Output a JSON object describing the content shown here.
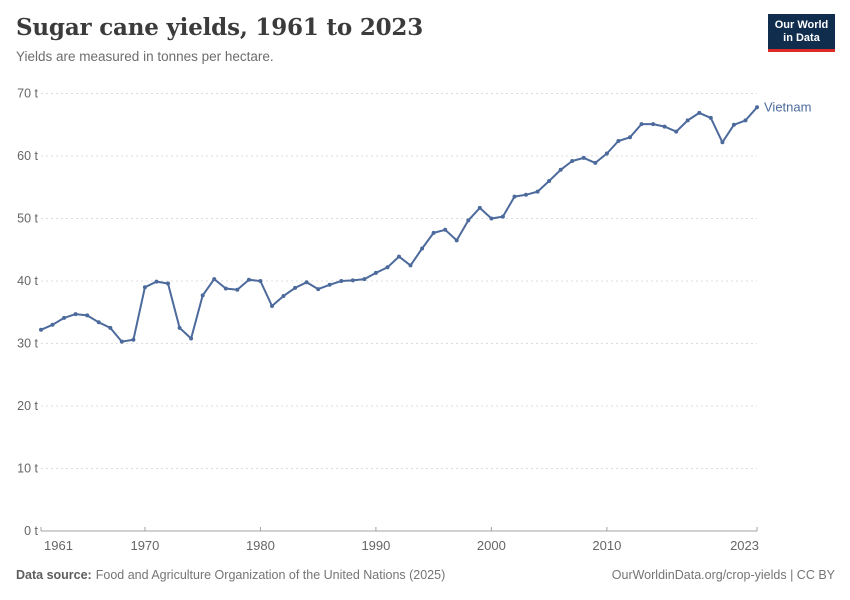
{
  "header": {
    "title": "Sugar cane yields, 1961 to 2023",
    "subtitle": "Yields are measured in tonnes per hectare."
  },
  "logo": {
    "line1": "Our World",
    "line2": "in Data"
  },
  "footer": {
    "source_label": "Data source:",
    "source_text": "Food and Agriculture Organization of the United Nations (2025)",
    "credit": "OurWorldinData.org/crop-yields | CC BY"
  },
  "colors": {
    "line": "#4C6A9C",
    "entity_label": "#4C6A9C",
    "gridline": "#dcdcdc",
    "axis": "#a3a3a3",
    "tick_text": "#666666"
  },
  "chart_data": {
    "type": "line",
    "title": "Sugar cane yields, 1961 to 2023",
    "ylabel": "tonnes per hectare",
    "xlabel": "",
    "xlim": [
      1961,
      2023
    ],
    "ylim": [
      0,
      70
    ],
    "xticks": [
      1961,
      1970,
      1980,
      1990,
      2000,
      2010,
      2023
    ],
    "yticks": [
      0,
      10,
      20,
      30,
      40,
      50,
      60,
      70
    ],
    "ytick_suffix": " t",
    "grid": "horizontal-dashed",
    "legend_position": "end-of-line-label",
    "series": [
      {
        "name": "Vietnam",
        "color": "#4C6A9C",
        "x": [
          1961,
          1962,
          1963,
          1964,
          1965,
          1966,
          1967,
          1968,
          1969,
          1970,
          1971,
          1972,
          1973,
          1974,
          1975,
          1976,
          1977,
          1978,
          1979,
          1980,
          1981,
          1982,
          1983,
          1984,
          1985,
          1986,
          1987,
          1988,
          1989,
          1990,
          1991,
          1992,
          1993,
          1994,
          1995,
          1996,
          1997,
          1998,
          1999,
          2000,
          2001,
          2002,
          2003,
          2004,
          2005,
          2006,
          2007,
          2008,
          2009,
          2010,
          2011,
          2012,
          2013,
          2014,
          2015,
          2016,
          2017,
          2018,
          2019,
          2020,
          2021,
          2022,
          2023
        ],
        "values": [
          32.2,
          33.0,
          34.1,
          34.7,
          34.5,
          33.4,
          32.5,
          30.3,
          30.6,
          39.0,
          39.9,
          39.6,
          32.5,
          30.8,
          37.7,
          40.3,
          38.8,
          38.6,
          40.2,
          40.0,
          36.0,
          37.6,
          38.9,
          39.8,
          38.7,
          39.4,
          40.0,
          40.1,
          40.3,
          41.3,
          42.2,
          43.9,
          42.5,
          45.2,
          47.7,
          48.2,
          46.5,
          49.7,
          51.7,
          50.0,
          50.3,
          53.5,
          53.8,
          54.3,
          56.0,
          57.8,
          59.2,
          59.7,
          58.9,
          60.4,
          62.4,
          63.0,
          65.1,
          65.1,
          64.7,
          63.9,
          65.7,
          66.9,
          66.1,
          62.2,
          65.0,
          65.7,
          67.8
        ]
      }
    ]
  }
}
